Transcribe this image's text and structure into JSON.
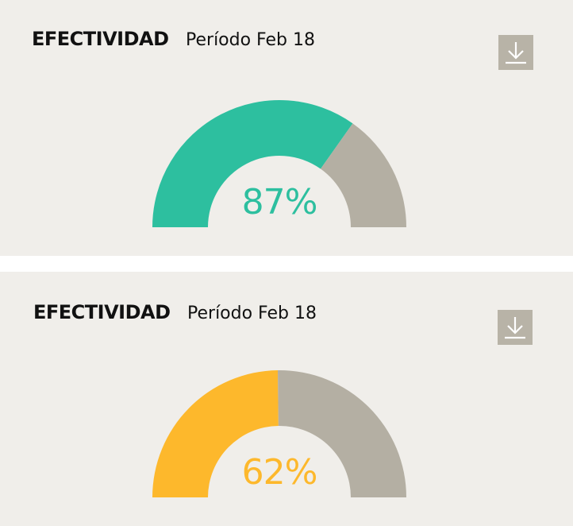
{
  "panels": [
    {
      "title": "EFECTIVIDAD",
      "period": "Período Feb 18",
      "download_icon": "download-icon",
      "gauge": {
        "value": 87,
        "label": "87%",
        "color": "#2dbf9f",
        "remainder_color": "#b4afa3"
      }
    },
    {
      "title": "EFECTIVIDAD",
      "period": "Período Feb 18",
      "download_icon": "download-icon",
      "gauge": {
        "value": 62,
        "label": "62%",
        "color": "#fdb82c",
        "remainder_color": "#b4afa3"
      }
    }
  ]
}
